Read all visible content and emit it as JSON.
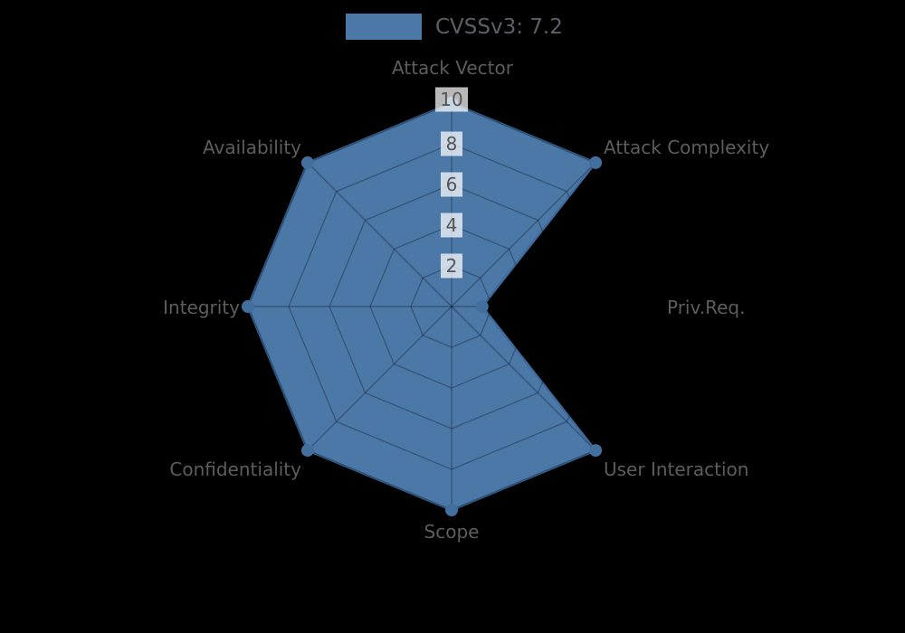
{
  "legend": {
    "label": "CVSSv3: 7.2",
    "swatch_color": "#4C78A8"
  },
  "chart_data": {
    "type": "radar",
    "title": "CVSSv3: 7.2",
    "axes": [
      "Attack Vector",
      "Attack Complexity",
      "Priv.Req.",
      "User Interaction",
      "Scope",
      "Confidentiality",
      "Integrity",
      "Availability"
    ],
    "series": [
      {
        "name": "CVSSv3: 7.2",
        "values": [
          10,
          10,
          1.5,
          10,
          10,
          10,
          10,
          10
        ]
      }
    ],
    "ticks": [
      2,
      4,
      6,
      8,
      10
    ],
    "range": [
      0,
      10
    ],
    "grid": true,
    "legend_position": "top",
    "colors": {
      "fill": "#4C78A8",
      "stroke": "#3E6B9B",
      "marker": "#436F9F",
      "grid_line": "rgba(0,0,0,0.28)",
      "tick_box": "rgba(255,255,255,0.72)",
      "tick_text": "#555555",
      "label_text": "#5d5d5d",
      "background": "#000000"
    }
  }
}
